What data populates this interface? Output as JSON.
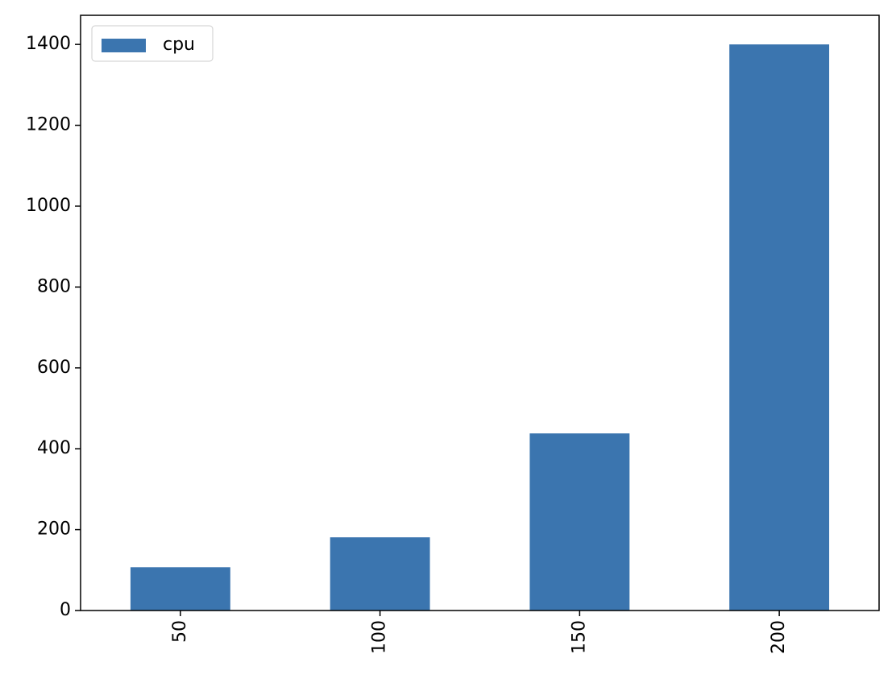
{
  "chart_data": {
    "type": "bar",
    "categories": [
      "50",
      "100",
      "150",
      "200"
    ],
    "series": [
      {
        "name": "cpu",
        "color": "#3b75af",
        "values": [
          107,
          181,
          438,
          1400
        ]
      }
    ],
    "ylim": [
      0,
      1472
    ],
    "yticks": [
      0,
      200,
      400,
      600,
      800,
      1000,
      1200,
      1400
    ],
    "legend": "upper left",
    "grid": false
  }
}
